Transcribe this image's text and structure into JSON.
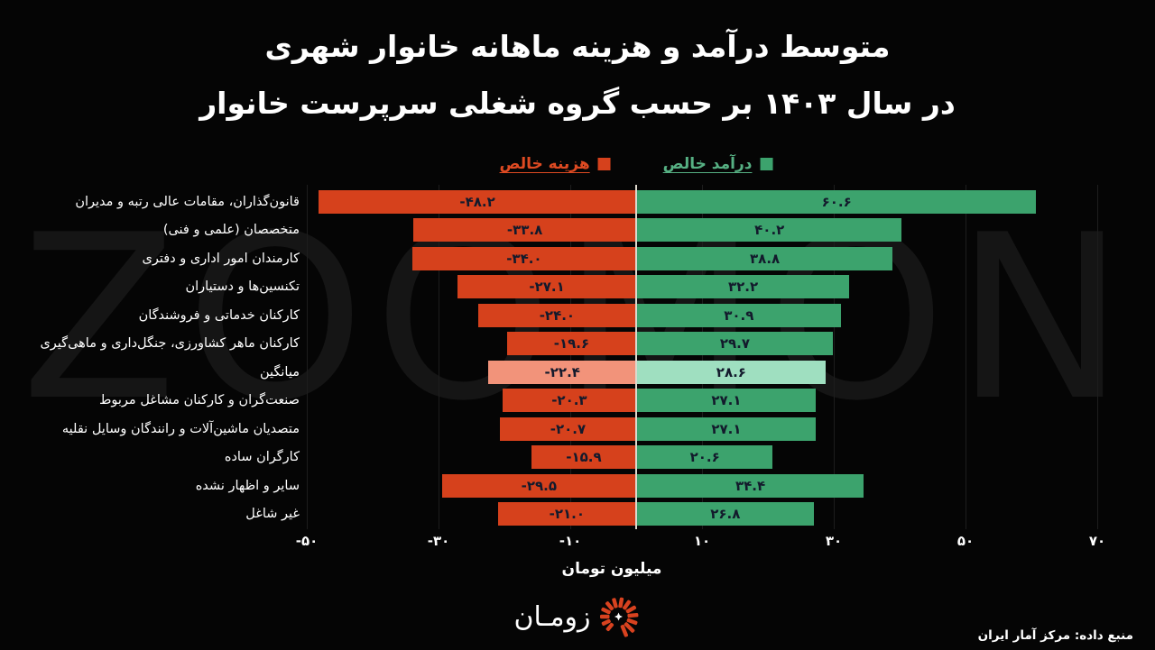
{
  "title": {
    "line1": "متوسط درآمد و هزینه ماهانه خانوار شهری",
    "line2": "در سال ۱۴۰۳ بر حسب گروه شغلی سرپرست خانوار"
  },
  "legend": {
    "expense_label": "هزینه خالص",
    "income_label": "درآمد خالص"
  },
  "colors": {
    "background": "#050505",
    "expense": "#d6411c",
    "income": "#3ca36d",
    "expense_highlight": "#f2937a",
    "income_highlight": "#9fdfc0",
    "expense_legend_text": "#de4a22",
    "income_legend_text": "#56b083",
    "value_text": "#131a2c",
    "zero_axis": "#ddd8cd",
    "gridline": "#1d1d1d",
    "watermark_text": "#151515",
    "logo_red": "#d8421f"
  },
  "watermark": "ZOOMON",
  "chart_data": {
    "type": "bar",
    "orientation": "horizontal-diverging",
    "title": "متوسط درآمد و هزینه ماهانه خانوار شهری در سال ۱۴۰۳ بر حسب گروه شغلی سرپرست خانوار",
    "xlabel": "میلیون تومان",
    "xlim": [
      -58,
      78
    ],
    "grid": "faint-vertical",
    "legend_position": "top",
    "categories": [
      "قانون‌گذاران، مقامات عالی رتبه و مدیران",
      "متخصصان (علمی و فنی)",
      "کارمندان امور اداری و دفتری",
      "تکنسین‌ها و دستیاران",
      "کارکنان خدماتی و فروشندگان",
      "کارکنان ماهر کشاورزی، جنگل‌داری و ماهی‌گیری",
      "میانگین",
      "صنعت‌گران و کارکنان مشاغل مربوط",
      "متصدیان ماشین‌آلات و رانندگان وسایل نقلیه",
      "کارگران ساده",
      "سایر و اظهار نشده",
      "غیر شاغل"
    ],
    "highlight_category": "میانگین",
    "series": [
      {
        "name": "هزینه خالص",
        "values": [
          -48.2,
          -33.8,
          -34.0,
          -27.1,
          -24.0,
          -19.6,
          -22.4,
          -20.3,
          -20.7,
          -15.9,
          -29.5,
          -21.0
        ],
        "labels": [
          "-۴۸.۲",
          "-۳۳.۸",
          "-۳۴.۰",
          "-۲۷.۱",
          "-۲۴.۰",
          "-۱۹.۶",
          "-۲۲.۴",
          "-۲۰.۳",
          "-۲۰.۷",
          "-۱۵.۹",
          "-۲۹.۵",
          "-۲۱.۰"
        ]
      },
      {
        "name": "درآمد خالص",
        "values": [
          60.6,
          40.2,
          38.8,
          32.2,
          30.9,
          29.7,
          28.6,
          27.1,
          27.1,
          20.6,
          34.4,
          26.8
        ],
        "labels": [
          "۶۰.۶",
          "۴۰.۲",
          "۳۸.۸",
          "۳۲.۲",
          "۳۰.۹",
          "۲۹.۷",
          "۲۸.۶",
          "۲۷.۱",
          "۲۷.۱",
          "۲۰.۶",
          "۳۴.۴",
          "۲۶.۸"
        ]
      }
    ],
    "x_ticks": {
      "values": [
        -50,
        -30,
        -10,
        10,
        30,
        50,
        70
      ],
      "labels": [
        "-۵۰",
        "-۳۰",
        "-۱۰",
        "۱۰",
        "۳۰",
        "۵۰",
        "۷۰"
      ]
    }
  },
  "footer": {
    "logo_text": "زومـان",
    "source": "منبع داده: مرکز آمار ایران"
  }
}
